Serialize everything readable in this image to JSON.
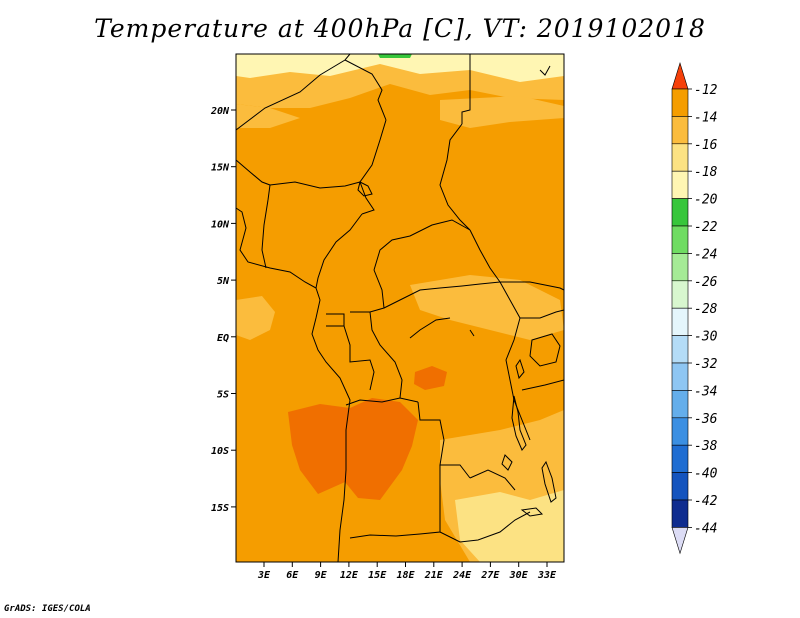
{
  "title": "Temperature at 400hPa [C], VT: 2019102018",
  "credit": "GrADS: IGES/COLA",
  "map": {
    "lat_labels": [
      "20N",
      "15N",
      "10N",
      "5N",
      "EQ",
      "5S",
      "10S",
      "15S"
    ],
    "lon_labels": [
      "3E",
      "6E",
      "9E",
      "12E",
      "15E",
      "18E",
      "21E",
      "24E",
      "27E",
      "30E",
      "33E"
    ],
    "colors": {
      "c_12_14": "#f06f00",
      "c_14_16": "#f59d00",
      "c_16_18": "#fbbc3d",
      "c_18_20": "#fce283",
      "c_20_22": "#fff6b3",
      "c_22_24": "#37c63b",
      "border": "#000000"
    }
  },
  "colorbar": {
    "labels": [
      "-12",
      "-14",
      "-16",
      "-18",
      "-20",
      "-22",
      "-24",
      "-26",
      "-28",
      "-30",
      "-32",
      "-34",
      "-36",
      "-38",
      "-40",
      "-42",
      "-44"
    ],
    "colors": [
      "#f06f00",
      "#f59d00",
      "#fbbc3d",
      "#fce283",
      "#fff6b3",
      "#37c63b",
      "#6fdc62",
      "#a5eb96",
      "#d8f7cf",
      "#e5f6fc",
      "#b4dcf7",
      "#8ec6f3",
      "#64aeeb",
      "#3b8fe2",
      "#1f6dd2",
      "#1454be",
      "#0f2c8f",
      "#071162"
    ],
    "top_arrow_color": "#f5400a",
    "bottom_arrow_color": "#dcdcf5"
  }
}
